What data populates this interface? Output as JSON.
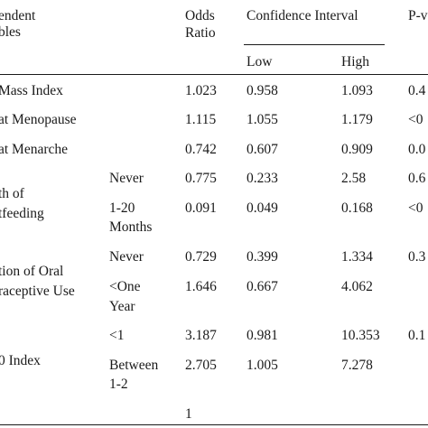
{
  "header": {
    "variables_line1": "endent",
    "variables_line2": "bles",
    "odds_line1": "Odds",
    "odds_line2": "Ratio",
    "ci": "Confidence Interval",
    "low": "Low",
    "high": "High",
    "pvalue": "P-v"
  },
  "rows": [
    {
      "var": "Mass Index",
      "odds": "1.023",
      "low": "0.958",
      "high": "1.093",
      "p": "0.4"
    },
    {
      "var": "at Menopause",
      "odds": "1.115",
      "low": "1.055",
      "high": "1.179",
      "p": "<0"
    },
    {
      "var": "at Menarche",
      "odds": "0.742",
      "low": "0.607",
      "high": "0.909",
      "p": "0.0"
    },
    {
      "var_line1": "th of",
      "var_line2": "tfeeding",
      "sub": [
        {
          "cat": "Never",
          "odds": "0.775",
          "low": "0.233",
          "high": "2.58",
          "p": "0.6"
        },
        {
          "cat_line1": "1-20",
          "cat_line2": "Months",
          "odds": "0.091",
          "low": "0.049",
          "high": "0.168",
          "p": "<0"
        }
      ]
    },
    {
      "var_line1": "tion of Oral",
      "var_line2": "raceptive Use",
      "sub": [
        {
          "cat": "Never",
          "odds": "0.729",
          "low": "0.399",
          "high": "1.334",
          "p": "0.3"
        },
        {
          "cat_line1": "<One",
          "cat_line2": "Year",
          "odds": "1.646",
          "low": "0.667",
          "high": "4.062",
          "p": ""
        }
      ]
    },
    {
      "var": "0 Index",
      "sub": [
        {
          "cat": "<1",
          "odds": "3.187",
          "low": "0.981",
          "high": "10.353",
          "p": "0.1"
        },
        {
          "cat_line1": "Between",
          "cat_line2": "1-2",
          "odds": "2.705",
          "low": "1.005",
          "high": "7.278",
          "p": ""
        },
        {
          "cat": "",
          "odds": "1",
          "low": "",
          "high": "",
          "p": ""
        }
      ]
    }
  ]
}
